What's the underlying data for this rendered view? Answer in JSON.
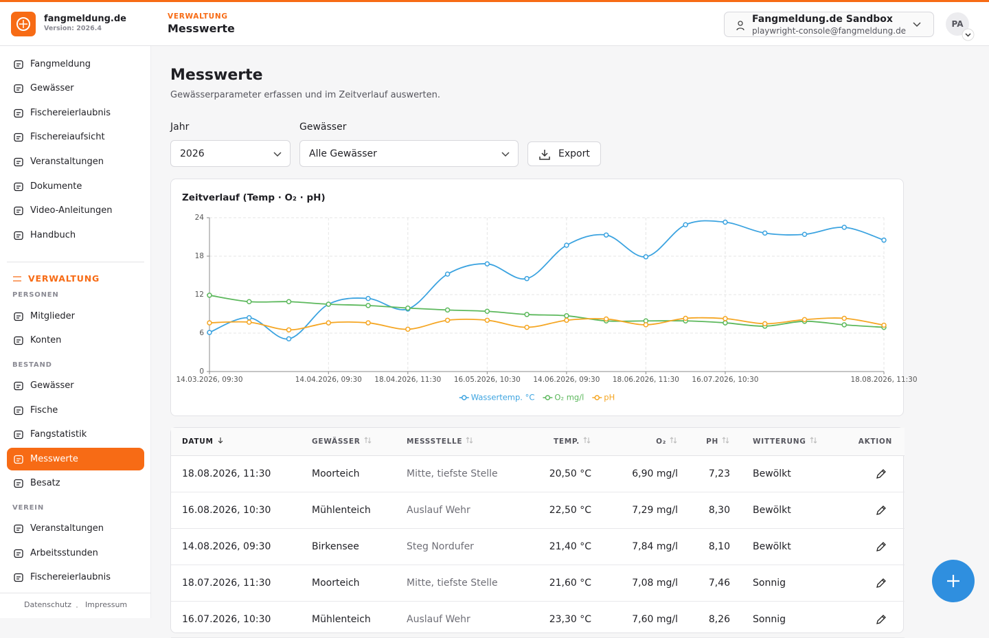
{
  "header": {
    "brand": "fangmeldung.de",
    "version": "Version: 2026.4",
    "section": "VERWALTUNG",
    "title": "Messwerte",
    "org": "Fangmeldung.de Sandbox",
    "email": "playwright-console@fangmeldung.de",
    "avatar": "PA"
  },
  "sidebar": {
    "main": [
      "Fangmeldung",
      "Gewässer",
      "Fischereierlaubnis",
      "Fischereiaufsicht",
      "Veranstaltungen",
      "Dokumente",
      "Video-Anleitungen",
      "Handbuch"
    ],
    "admin": "VERWALTUNG",
    "groups": [
      {
        "label": "PERSONEN",
        "items": [
          "Mitglieder",
          "Konten"
        ]
      },
      {
        "label": "BESTAND",
        "items": [
          "Gewässer",
          "Fische",
          "Fangstatistik",
          "Messwerte",
          "Besatz"
        ]
      },
      {
        "label": "VEREIN",
        "items": [
          "Veranstaltungen",
          "Arbeitsstunden",
          "Fischereierlaubnis"
        ]
      }
    ],
    "footer": [
      "Datenschutz",
      "Impressum"
    ]
  },
  "page": {
    "title": "Messwerte",
    "subtitle": "Gewässerparameter erfassen und im Zeitverlauf auswerten.",
    "filters": [
      {
        "label": "Jahr",
        "value": "2026"
      },
      {
        "label": "Gewässer",
        "value": "Alle Gewässer"
      }
    ],
    "export": "Export"
  },
  "chart_data": {
    "type": "line",
    "title": "Zeitverlauf (Temp · O₂ · pH)",
    "categories": [
      "14.03.2026, 09:30",
      null,
      null,
      "14.04.2026, 09:30",
      null,
      "18.04.2026, 11:30",
      null,
      "16.05.2026, 10:30",
      null,
      "14.06.2026, 09:30",
      null,
      "18.06.2026, 11:30",
      null,
      "16.07.2026, 10:30",
      null,
      null,
      null,
      "18.08.2026, 11:30"
    ],
    "series": [
      {
        "name": "Wassertemp. °C",
        "color": "#3ba3e0",
        "values": [
          6.1,
          8.4,
          5.1,
          10.5,
          11.4,
          9.75,
          15.2,
          16.8,
          14.5,
          19.7,
          21.3,
          17.9,
          22.9,
          23.3,
          21.6,
          21.4,
          22.5,
          20.5
        ]
      },
      {
        "name": "O₂ mg/l",
        "color": "#5cb85c",
        "values": [
          11.9,
          10.9,
          10.9,
          10.5,
          10.3,
          9.9,
          9.6,
          9.4,
          8.9,
          8.7,
          7.9,
          7.9,
          7.9,
          7.6,
          7.08,
          7.84,
          7.29,
          6.9
        ]
      },
      {
        "name": "pH",
        "color": "#f5a623",
        "values": [
          7.6,
          7.7,
          6.5,
          7.6,
          7.6,
          6.6,
          8.0,
          8.0,
          6.9,
          8.0,
          8.2,
          7.3,
          8.3,
          8.26,
          7.46,
          8.1,
          8.3,
          7.23
        ]
      }
    ],
    "ylim": [
      0,
      24
    ],
    "yticks": [
      0,
      6,
      12,
      18,
      24
    ],
    "grid": true
  },
  "table": {
    "headers": [
      "DATUM",
      "GEWÄSSER",
      "MESSSTELLE",
      "TEMP.",
      "O₂",
      "PH",
      "WITTERUNG",
      "AKTION"
    ],
    "rows": [
      [
        "18.08.2026, 11:30",
        "Moorteich",
        "Mitte, tiefste Stelle",
        "20,50 °C",
        "6,90 mg/l",
        "7,23",
        "Bewölkt"
      ],
      [
        "16.08.2026, 10:30",
        "Mühlenteich",
        "Auslauf Wehr",
        "22,50 °C",
        "7,29 mg/l",
        "8,30",
        "Bewölkt"
      ],
      [
        "14.08.2026, 09:30",
        "Birkensee",
        "Steg Nordufer",
        "21,40 °C",
        "7,84 mg/l",
        "8,10",
        "Bewölkt"
      ],
      [
        "18.07.2026, 11:30",
        "Moorteich",
        "Mitte, tiefste Stelle",
        "21,60 °C",
        "7,08 mg/l",
        "7,46",
        "Sonnig"
      ],
      [
        "16.07.2026, 10:30",
        "Mühlenteich",
        "Auslauf Wehr",
        "23,30 °C",
        "7,60 mg/l",
        "8,26",
        "Sonnig"
      ]
    ]
  }
}
